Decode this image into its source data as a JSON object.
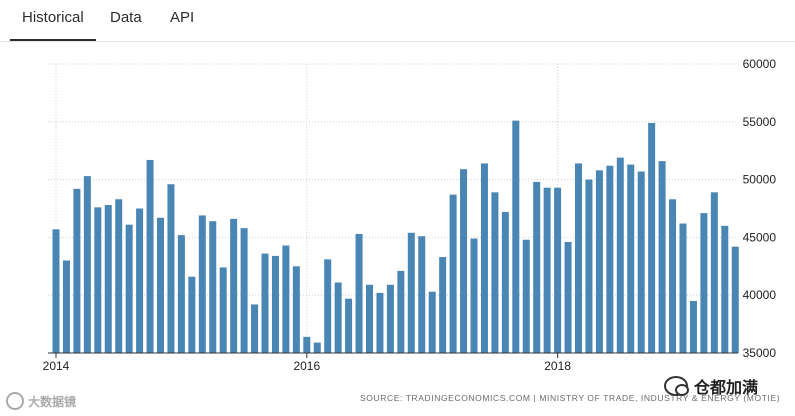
{
  "tabs": [
    {
      "label": "Historical",
      "active": true
    },
    {
      "label": "Data",
      "active": false
    },
    {
      "label": "API",
      "active": false
    }
  ],
  "source": "SOURCE: TRADINGECONOMICS.COM | MINISTRY OF TRADE, INDUSTRY & ENERGY (MOTIE)",
  "watermark_right": "仓都加满",
  "watermark_left": "大数据镜",
  "colors": {
    "bar": "#4a86b3",
    "grid": "#cfcfcf",
    "axis": "#333333",
    "text": "#222222"
  },
  "chart_data": {
    "type": "bar",
    "title": "",
    "xlabel": "",
    "ylabel": "",
    "ylim": [
      35000,
      60000
    ],
    "yticks": [
      35000,
      40000,
      45000,
      50000,
      55000,
      60000
    ],
    "xticks": [
      {
        "label": "2014",
        "index": 0
      },
      {
        "label": "2016",
        "index": 24
      },
      {
        "label": "2018",
        "index": 48
      }
    ],
    "values": [
      45700,
      43000,
      49200,
      50300,
      47600,
      47800,
      48300,
      46100,
      47500,
      51700,
      46700,
      49600,
      45200,
      41600,
      46900,
      46400,
      42400,
      46600,
      45800,
      39200,
      43600,
      43400,
      44300,
      42500,
      36400,
      35900,
      43100,
      41100,
      39700,
      45300,
      40900,
      40200,
      40900,
      42100,
      45400,
      45100,
      40300,
      43300,
      48700,
      50900,
      44900,
      51400,
      48900,
      47200,
      55100,
      44800,
      49800,
      49300,
      49300,
      44600,
      51400,
      50000,
      50800,
      51200,
      51900,
      51300,
      50700,
      54900,
      51600,
      48300,
      46200,
      39500,
      47100,
      48900,
      46000,
      44200
    ]
  }
}
